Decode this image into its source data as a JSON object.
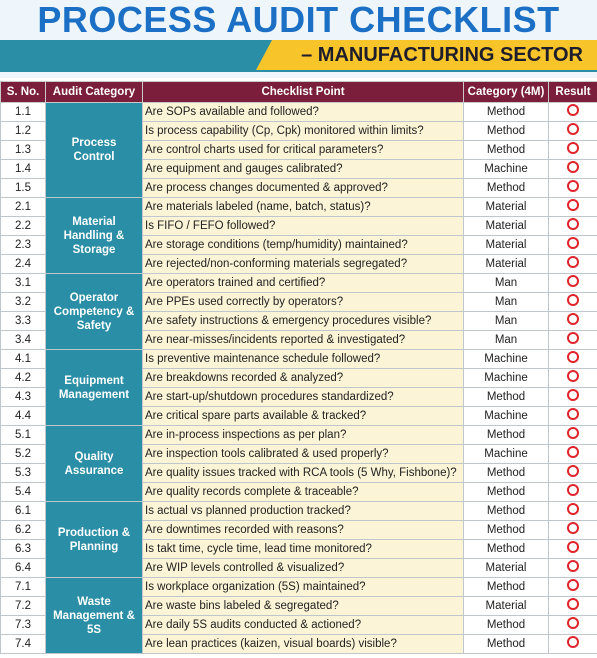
{
  "header": {
    "title": "PROCESS AUDIT CHECKLIST",
    "subtitle": "– MANUFACTURING SECTOR"
  },
  "table": {
    "columns": [
      "S. No.",
      "Audit Category",
      "Checklist Point",
      "Category (4M)",
      "Result"
    ],
    "groups": [
      {
        "category": "Process Control",
        "rows": [
          [
            "1.1",
            "Are SOPs available and followed?",
            "Method"
          ],
          [
            "1.2",
            "Is process capability (Cp, Cpk) monitored within limits?",
            "Method"
          ],
          [
            "1.3",
            "Are control charts used for critical parameters?",
            "Method"
          ],
          [
            "1.4",
            "Are equipment and gauges calibrated?",
            "Machine"
          ],
          [
            "1.5",
            "Are process changes documented & approved?",
            "Method"
          ]
        ]
      },
      {
        "category": "Material Handling & Storage",
        "rows": [
          [
            "2.1",
            "Are materials labeled (name, batch, status)?",
            "Material"
          ],
          [
            "2.2",
            "Is FIFO / FEFO followed?",
            "Material"
          ],
          [
            "2.3",
            "Are storage conditions (temp/humidity) maintained?",
            "Material"
          ],
          [
            "2.4",
            "Are rejected/non-conforming materials segregated?",
            "Material"
          ]
        ]
      },
      {
        "category": "Operator Competency & Safety",
        "rows": [
          [
            "3.1",
            "Are operators trained and certified?",
            "Man"
          ],
          [
            "3.2",
            "Are PPEs used correctly by operators?",
            "Man"
          ],
          [
            "3.3",
            "Are safety instructions & emergency procedures visible?",
            "Man"
          ],
          [
            "3.4",
            "Are near-misses/incidents reported & investigated?",
            "Man"
          ]
        ]
      },
      {
        "category": "Equipment Management",
        "rows": [
          [
            "4.1",
            "Is preventive maintenance schedule followed?",
            "Machine"
          ],
          [
            "4.2",
            "Are breakdowns recorded & analyzed?",
            "Machine"
          ],
          [
            "4.3",
            "Are start-up/shutdown procedures standardized?",
            "Method"
          ],
          [
            "4.4",
            "Are critical spare parts available & tracked?",
            "Machine"
          ]
        ]
      },
      {
        "category": "Quality Assurance",
        "rows": [
          [
            "5.1",
            "Are in-process inspections as per plan?",
            "Method"
          ],
          [
            "5.2",
            "Are inspection tools calibrated & used properly?",
            "Machine"
          ],
          [
            "5.3",
            "Are quality issues tracked with RCA tools (5 Why, Fishbone)?",
            "Method"
          ],
          [
            "5.4",
            "Are quality records complete & traceable?",
            "Method"
          ]
        ]
      },
      {
        "category": "Production & Planning",
        "rows": [
          [
            "6.1",
            "Is actual vs planned production tracked?",
            "Method"
          ],
          [
            "6.2",
            "Are downtimes recorded with reasons?",
            "Method"
          ],
          [
            "6.3",
            "Is takt time, cycle time, lead time monitored?",
            "Method"
          ],
          [
            "6.4",
            "Are WIP levels controlled & visualized?",
            "Material"
          ]
        ]
      },
      {
        "category": "Waste Management & 5S",
        "rows": [
          [
            "7.1",
            "Is workplace organization (5S) maintained?",
            "Method"
          ],
          [
            "7.2",
            "Are waste bins labeled & segregated?",
            "Material"
          ],
          [
            "7.3",
            "Are daily 5S audits conducted & actioned?",
            "Method"
          ],
          [
            "7.4",
            "Are lean practices (kaizen, visual boards) visible?",
            "Method"
          ]
        ]
      }
    ]
  }
}
